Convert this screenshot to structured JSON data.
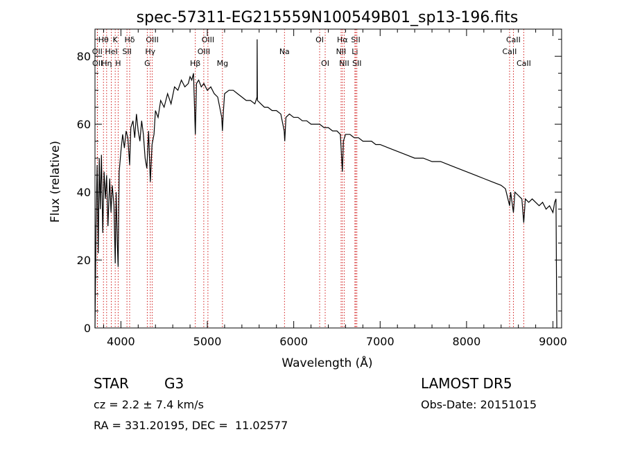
{
  "chart_data": {
    "type": "line",
    "title": "spec-57311-EG215559N100549B01_sp13-196.fits",
    "xlabel": "Wavelength (Å)",
    "ylabel": "Flux (relative)",
    "xlim": [
      3700,
      9100
    ],
    "ylim": [
      0,
      88
    ],
    "x_ticks": [
      4000,
      5000,
      6000,
      7000,
      8000,
      9000
    ],
    "x_tick_labels": [
      "4000",
      "5000",
      "6000",
      "7000",
      "8000",
      "9000"
    ],
    "y_ticks": [
      0,
      20,
      40,
      60,
      80
    ],
    "y_tick_labels": [
      "0",
      "20",
      "40",
      "60",
      "80"
    ],
    "grid": false,
    "line_color": "#000000",
    "marker_color": "#cc0000",
    "series": [
      {
        "points": [
          [
            3700,
            0
          ],
          [
            3712,
            30
          ],
          [
            3725,
            48
          ],
          [
            3738,
            22
          ],
          [
            3750,
            50
          ],
          [
            3762,
            35
          ],
          [
            3775,
            51
          ],
          [
            3790,
            28
          ],
          [
            3805,
            46
          ],
          [
            3820,
            38
          ],
          [
            3835,
            45
          ],
          [
            3850,
            30
          ],
          [
            3870,
            44
          ],
          [
            3885,
            34
          ],
          [
            3900,
            42
          ],
          [
            3920,
            36
          ],
          [
            3934,
            19
          ],
          [
            3945,
            40
          ],
          [
            3960,
            24
          ],
          [
            3968,
            18
          ],
          [
            3980,
            46
          ],
          [
            4000,
            52
          ],
          [
            4020,
            57
          ],
          [
            4040,
            53
          ],
          [
            4060,
            58
          ],
          [
            4080,
            56
          ],
          [
            4101,
            48
          ],
          [
            4115,
            59
          ],
          [
            4140,
            61
          ],
          [
            4160,
            56
          ],
          [
            4180,
            63
          ],
          [
            4200,
            58
          ],
          [
            4220,
            55
          ],
          [
            4240,
            61
          ],
          [
            4260,
            57
          ],
          [
            4280,
            50
          ],
          [
            4300,
            47
          ],
          [
            4320,
            58
          ],
          [
            4340,
            43
          ],
          [
            4360,
            54
          ],
          [
            4383,
            57
          ],
          [
            4400,
            64
          ],
          [
            4430,
            62
          ],
          [
            4460,
            67
          ],
          [
            4500,
            65
          ],
          [
            4540,
            69
          ],
          [
            4580,
            66
          ],
          [
            4620,
            71
          ],
          [
            4660,
            70
          ],
          [
            4700,
            73
          ],
          [
            4740,
            71
          ],
          [
            4780,
            72
          ],
          [
            4800,
            74
          ],
          [
            4820,
            73
          ],
          [
            4840,
            75
          ],
          [
            4861,
            57
          ],
          [
            4875,
            72
          ],
          [
            4900,
            73
          ],
          [
            4930,
            71
          ],
          [
            4960,
            72
          ],
          [
            5000,
            70
          ],
          [
            5040,
            71
          ],
          [
            5080,
            69
          ],
          [
            5120,
            68
          ],
          [
            5167,
            62
          ],
          [
            5175,
            58
          ],
          [
            5184,
            63
          ],
          [
            5200,
            69
          ],
          [
            5250,
            70
          ],
          [
            5300,
            70
          ],
          [
            5350,
            69
          ],
          [
            5400,
            68
          ],
          [
            5450,
            67
          ],
          [
            5500,
            67
          ],
          [
            5550,
            66
          ],
          [
            5575,
            68
          ],
          [
            5577,
            85
          ],
          [
            5580,
            67
          ],
          [
            5620,
            66
          ],
          [
            5660,
            65
          ],
          [
            5700,
            65
          ],
          [
            5750,
            64
          ],
          [
            5800,
            64
          ],
          [
            5850,
            63
          ],
          [
            5890,
            58
          ],
          [
            5896,
            55
          ],
          [
            5910,
            62
          ],
          [
            5950,
            63
          ],
          [
            6000,
            62
          ],
          [
            6050,
            62
          ],
          [
            6100,
            61
          ],
          [
            6150,
            61
          ],
          [
            6200,
            60
          ],
          [
            6250,
            60
          ],
          [
            6300,
            60
          ],
          [
            6350,
            59
          ],
          [
            6400,
            59
          ],
          [
            6450,
            58
          ],
          [
            6500,
            58
          ],
          [
            6540,
            57
          ],
          [
            6563,
            46
          ],
          [
            6575,
            55
          ],
          [
            6600,
            57
          ],
          [
            6650,
            57
          ],
          [
            6700,
            56
          ],
          [
            6750,
            56
          ],
          [
            6800,
            55
          ],
          [
            6850,
            55
          ],
          [
            6900,
            55
          ],
          [
            6950,
            54
          ],
          [
            7000,
            54
          ],
          [
            7100,
            53
          ],
          [
            7200,
            52
          ],
          [
            7300,
            51
          ],
          [
            7400,
            50
          ],
          [
            7500,
            50
          ],
          [
            7600,
            49
          ],
          [
            7700,
            49
          ],
          [
            7800,
            48
          ],
          [
            7900,
            47
          ],
          [
            8000,
            46
          ],
          [
            8100,
            45
          ],
          [
            8200,
            44
          ],
          [
            8300,
            43
          ],
          [
            8400,
            42
          ],
          [
            8450,
            41
          ],
          [
            8498,
            36
          ],
          [
            8510,
            40
          ],
          [
            8542,
            34
          ],
          [
            8560,
            40
          ],
          [
            8600,
            39
          ],
          [
            8640,
            38
          ],
          [
            8662,
            31
          ],
          [
            8680,
            38
          ],
          [
            8720,
            37
          ],
          [
            8760,
            38
          ],
          [
            8800,
            37
          ],
          [
            8840,
            36
          ],
          [
            8880,
            37
          ],
          [
            8920,
            35
          ],
          [
            8960,
            36
          ],
          [
            9000,
            34
          ],
          [
            9020,
            37
          ],
          [
            9035,
            38
          ],
          [
            9040,
            18
          ],
          [
            9045,
            0
          ]
        ]
      }
    ],
    "line_markers": [
      {
        "label": "Hθ",
        "wavelength": 3798,
        "row": 0
      },
      {
        "label": "OII",
        "wavelength": 3727,
        "row": 1
      },
      {
        "label": "OII",
        "wavelength": 3729,
        "row": 2
      },
      {
        "label": "HeI",
        "wavelength": 3889,
        "row": 1
      },
      {
        "label": "Hη",
        "wavelength": 3835,
        "row": 2
      },
      {
        "label": "K",
        "wavelength": 3934,
        "row": 0
      },
      {
        "label": "H",
        "wavelength": 3968,
        "row": 2
      },
      {
        "label": "Hδ",
        "wavelength": 4101,
        "row": 0
      },
      {
        "label": "SII",
        "wavelength": 4070,
        "row": 1
      },
      {
        "label": "OIII",
        "wavelength": 4363,
        "row": 0
      },
      {
        "label": "Hγ",
        "wavelength": 4340,
        "row": 1
      },
      {
        "label": "G",
        "wavelength": 4305,
        "row": 2
      },
      {
        "label": "Hβ",
        "wavelength": 4861,
        "row": 2
      },
      {
        "label": "OIII",
        "wavelength": 5007,
        "row": 0
      },
      {
        "label": "OIII",
        "wavelength": 4959,
        "row": 1
      },
      {
        "label": "Mg",
        "wavelength": 5175,
        "row": 2
      },
      {
        "label": "Na",
        "wavelength": 5893,
        "row": 1
      },
      {
        "label": "OI",
        "wavelength": 6300,
        "row": 0
      },
      {
        "label": "OI",
        "wavelength": 6364,
        "row": 2
      },
      {
        "label": "Hα",
        "wavelength": 6563,
        "row": 0
      },
      {
        "label": "NII",
        "wavelength": 6548,
        "row": 1
      },
      {
        "label": "NII",
        "wavelength": 6584,
        "row": 2
      },
      {
        "label": "SII",
        "wavelength": 6717,
        "row": 0
      },
      {
        "label": "Li",
        "wavelength": 6708,
        "row": 1
      },
      {
        "label": "SII",
        "wavelength": 6731,
        "row": 2
      },
      {
        "label": "CaII",
        "wavelength": 8542,
        "row": 0
      },
      {
        "label": "CaII",
        "wavelength": 8498,
        "row": 1
      },
      {
        "label": "CaII",
        "wavelength": 8662,
        "row": 2
      }
    ]
  },
  "info": {
    "object_class": "STAR",
    "subclass": "G3",
    "redshift": "cz = 2.2 ± 7.4 km/s",
    "survey": "LAMOST DR5",
    "obs_date": "Obs-Date: 20151015",
    "coords": "RA = 331.20195, DEC =  11.02577"
  }
}
